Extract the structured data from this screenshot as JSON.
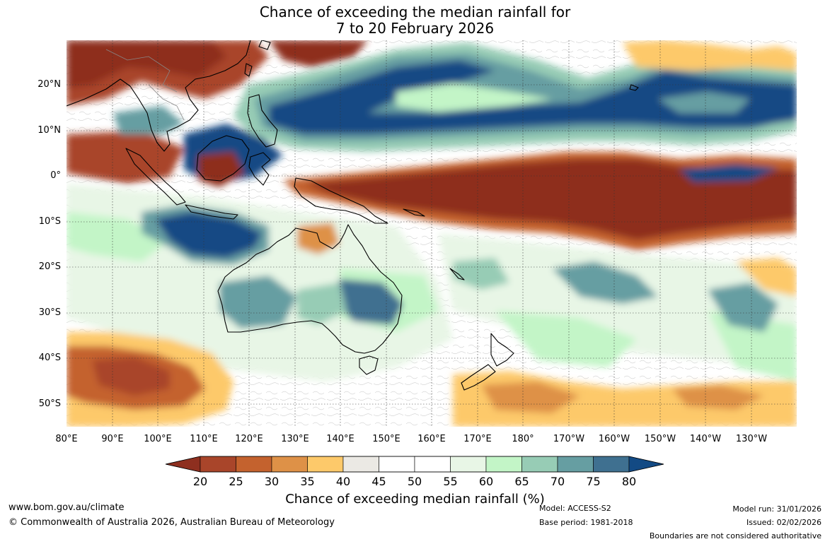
{
  "title_line1": "Chance of exceeding the median rainfall for",
  "title_line2": "7 to 20 February 2026",
  "lat_labels": [
    "20°N",
    "10°N",
    "0°",
    "10°S",
    "20°S",
    "30°S",
    "40°S",
    "50°S"
  ],
  "lon_labels": [
    "80°E",
    "90°E",
    "100°E",
    "110°E",
    "120°E",
    "130°E",
    "140°E",
    "150°E",
    "160°E",
    "170°E",
    "180°",
    "170°W",
    "160°W",
    "150°W",
    "140°W",
    "130°W"
  ],
  "legend": {
    "title": "Chance of exceeding median rainfall (%)",
    "ticks": [
      "20",
      "25",
      "30",
      "35",
      "40",
      "45",
      "50",
      "55",
      "60",
      "65",
      "70",
      "75",
      "80"
    ],
    "colors": [
      "#8e2f1f",
      "#a9452a",
      "#c4622e",
      "#de9147",
      "#fdc96a",
      "#ebe9e4",
      "#ffffff",
      "#ffffff",
      "#e8f6e6",
      "#c3f5c7",
      "#97ccb5",
      "#669ea2",
      "#3f7090",
      "#134a84"
    ]
  },
  "footer": {
    "website": "www.bom.gov.au/climate",
    "copyright": "© Commonwealth of Australia 2026, Australian Bureau of Meteorology",
    "model": "Model: ACCESS-S2",
    "base_period": "Base period: 1981-2018",
    "model_run": "Model run: 31/01/2026",
    "issued": "Issued: 02/02/2026",
    "disclaimer": "Boundaries are not considered authoritative"
  }
}
